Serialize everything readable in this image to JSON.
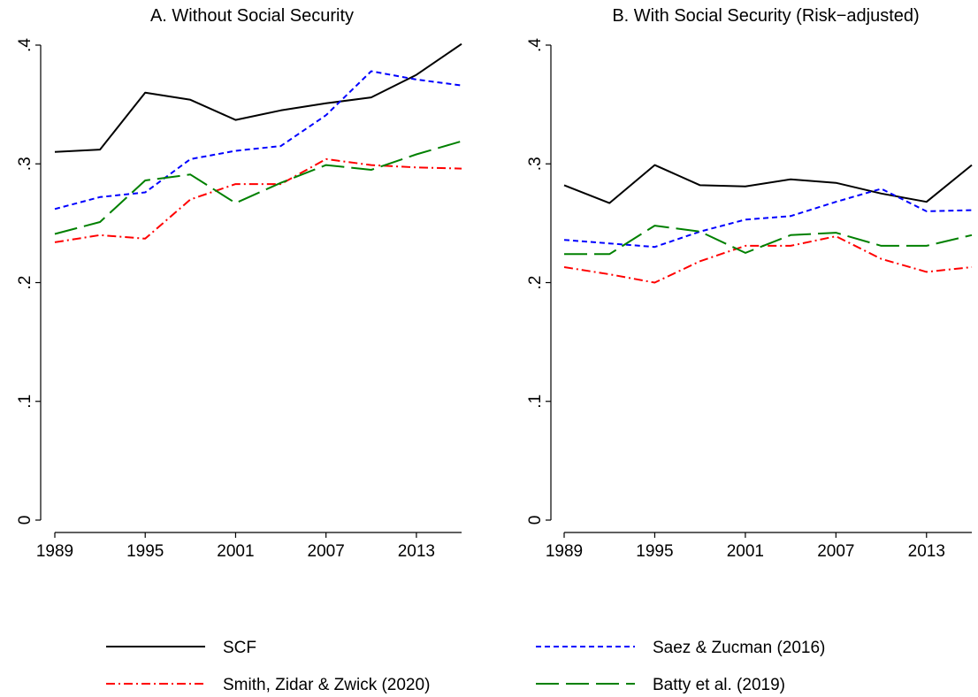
{
  "chart_data": [
    {
      "type": "line",
      "title": "A. Without Social Security",
      "xlabel": "",
      "ylabel": "",
      "x": [
        1989,
        1992,
        1995,
        1998,
        2001,
        2004,
        2007,
        2010,
        2013,
        2016
      ],
      "xticks": [
        "1989",
        "1995",
        "2001",
        "2007",
        "2013"
      ],
      "yticks": [
        "0",
        ".1",
        ".2",
        ".3",
        ".4"
      ],
      "ylim": [
        0,
        0.4
      ],
      "series": [
        {
          "name": "SCF",
          "color": "#000000",
          "values": [
            0.31,
            0.312,
            0.36,
            0.354,
            0.337,
            0.345,
            0.351,
            0.356,
            0.375,
            0.401
          ]
        },
        {
          "name": "Saez & Zucman (2016)",
          "color": "#0000ff",
          "values": [
            0.262,
            0.272,
            0.276,
            0.304,
            0.311,
            0.315,
            0.341,
            0.378,
            0.371,
            0.366
          ]
        },
        {
          "name": "Smith, Zidar & Zwick (2020)",
          "color": "#ff0000",
          "values": [
            0.234,
            0.24,
            0.237,
            0.27,
            0.283,
            0.283,
            0.304,
            0.299,
            0.297,
            0.296
          ]
        },
        {
          "name": "Batty et al. (2019)",
          "color": "#008000",
          "values": [
            0.241,
            0.251,
            0.286,
            0.291,
            0.267,
            0.284,
            0.299,
            0.295,
            0.308,
            0.319
          ]
        }
      ]
    },
    {
      "type": "line",
      "title": "B. With Social Security (Risk−adjusted)",
      "xlabel": "",
      "ylabel": "",
      "x": [
        1989,
        1992,
        1995,
        1998,
        2001,
        2004,
        2007,
        2010,
        2013,
        2016
      ],
      "xticks": [
        "1989",
        "1995",
        "2001",
        "2007",
        "2013"
      ],
      "yticks": [
        "0",
        ".1",
        ".2",
        ".3",
        ".4"
      ],
      "ylim": [
        0,
        0.4
      ],
      "series": [
        {
          "name": "SCF",
          "color": "#000000",
          "values": [
            0.282,
            0.267,
            0.299,
            0.282,
            0.281,
            0.287,
            0.284,
            0.275,
            0.268,
            0.299
          ]
        },
        {
          "name": "Saez & Zucman (2016)",
          "color": "#0000ff",
          "values": [
            0.236,
            0.233,
            0.23,
            0.243,
            0.253,
            0.256,
            0.268,
            0.279,
            0.26,
            0.261
          ]
        },
        {
          "name": "Smith, Zidar & Zwick (2020)",
          "color": "#ff0000",
          "values": [
            0.213,
            0.207,
            0.2,
            0.218,
            0.231,
            0.231,
            0.239,
            0.22,
            0.209,
            0.213
          ]
        },
        {
          "name": "Batty et al. (2019)",
          "color": "#008000",
          "values": [
            0.224,
            0.224,
            0.248,
            0.243,
            0.225,
            0.24,
            0.242,
            0.231,
            0.231,
            0.24
          ]
        }
      ]
    }
  ],
  "legend": {
    "placement": "bottom",
    "items": [
      {
        "label": "SCF",
        "style": "solid",
        "color": "#000000"
      },
      {
        "label": "Saez & Zucman (2016)",
        "style": "short-dash",
        "color": "#0000ff"
      },
      {
        "label": "Smith, Zidar & Zwick (2020)",
        "style": "dash-dot",
        "color": "#ff0000"
      },
      {
        "label": "Batty et al. (2019)",
        "style": "long-dash",
        "color": "#008000"
      }
    ]
  }
}
